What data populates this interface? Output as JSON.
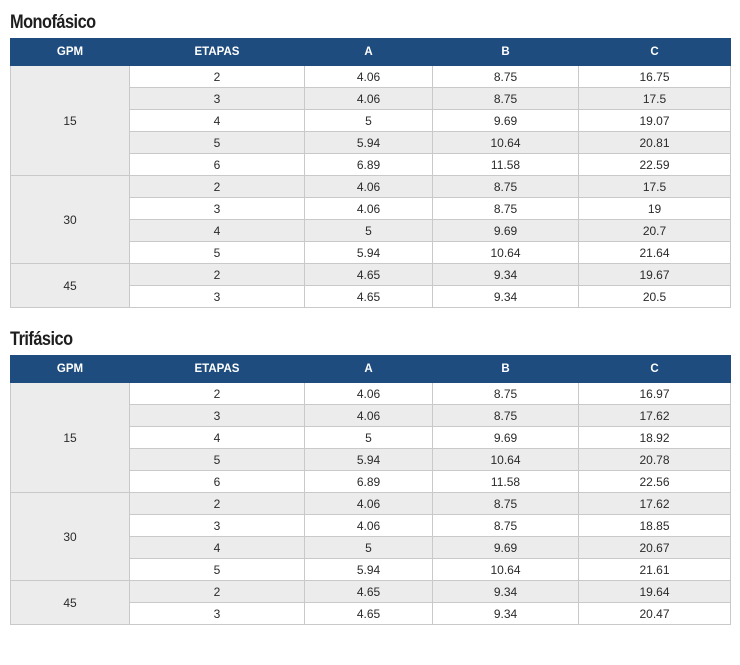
{
  "sections": [
    {
      "title": "Monofásico",
      "headers": [
        "GPM",
        "ETAPAS",
        "A",
        "B",
        "C"
      ],
      "groups": [
        {
          "gpm": "15",
          "rows": [
            [
              "2",
              "4.06",
              "8.75",
              "16.75"
            ],
            [
              "3",
              "4.06",
              "8.75",
              "17.5"
            ],
            [
              "4",
              "5",
              "9.69",
              "19.07"
            ],
            [
              "5",
              "5.94",
              "10.64",
              "20.81"
            ],
            [
              "6",
              "6.89",
              "11.58",
              "22.59"
            ]
          ]
        },
        {
          "gpm": "30",
          "rows": [
            [
              "2",
              "4.06",
              "8.75",
              "17.5"
            ],
            [
              "3",
              "4.06",
              "8.75",
              "19"
            ],
            [
              "4",
              "5",
              "9.69",
              "20.7"
            ],
            [
              "5",
              "5.94",
              "10.64",
              "21.64"
            ]
          ]
        },
        {
          "gpm": "45",
          "rows": [
            [
              "2",
              "4.65",
              "9.34",
              "19.67"
            ],
            [
              "3",
              "4.65",
              "9.34",
              "20.5"
            ]
          ]
        }
      ]
    },
    {
      "title": "Trifásico",
      "headers": [
        "GPM",
        "ETAPAS",
        "A",
        "B",
        "C"
      ],
      "groups": [
        {
          "gpm": "15",
          "rows": [
            [
              "2",
              "4.06",
              "8.75",
              "16.97"
            ],
            [
              "3",
              "4.06",
              "8.75",
              "17.62"
            ],
            [
              "4",
              "5",
              "9.69",
              "18.92"
            ],
            [
              "5",
              "5.94",
              "10.64",
              "20.78"
            ],
            [
              "6",
              "6.89",
              "11.58",
              "22.56"
            ]
          ]
        },
        {
          "gpm": "30",
          "rows": [
            [
              "2",
              "4.06",
              "8.75",
              "17.62"
            ],
            [
              "3",
              "4.06",
              "8.75",
              "18.85"
            ],
            [
              "4",
              "5",
              "9.69",
              "20.67"
            ],
            [
              "5",
              "5.94",
              "10.64",
              "21.61"
            ]
          ]
        },
        {
          "gpm": "45",
          "rows": [
            [
              "2",
              "4.65",
              "9.34",
              "19.64"
            ],
            [
              "3",
              "4.65",
              "9.34",
              "20.47"
            ]
          ]
        }
      ]
    }
  ]
}
